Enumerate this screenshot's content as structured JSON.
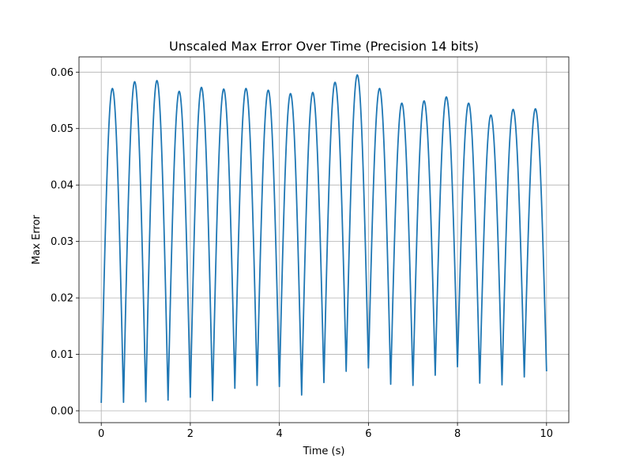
{
  "chart_data": {
    "type": "line",
    "title": "Unscaled Max Error Over Time (Precision 14 bits)",
    "xlabel": "Time (s)",
    "ylabel": "Max Error",
    "xlim": [
      -0.5,
      10.5
    ],
    "ylim": [
      -0.0021,
      0.0627
    ],
    "xticks": [
      0,
      2,
      4,
      6,
      8,
      10
    ],
    "xtick_labels": [
      "0",
      "2",
      "4",
      "6",
      "8",
      "10"
    ],
    "yticks": [
      0.0,
      0.01,
      0.02,
      0.03,
      0.04,
      0.05,
      0.06
    ],
    "ytick_labels": [
      "0.00",
      "0.01",
      "0.02",
      "0.03",
      "0.04",
      "0.05",
      "0.06"
    ],
    "grid": true,
    "legend": "none",
    "series": [
      {
        "color": "#1f77b4",
        "x": [
          0.0,
          0.25,
          0.5,
          0.75,
          1.0,
          1.25,
          1.5,
          1.75,
          2.0,
          2.25,
          2.5,
          2.75,
          3.0,
          3.25,
          3.5,
          3.75,
          4.0,
          4.25,
          4.5,
          4.75,
          5.0,
          5.25,
          5.5,
          5.75,
          6.0,
          6.25,
          6.5,
          6.75,
          7.0,
          7.25,
          7.5,
          7.75,
          8.0,
          8.25,
          8.5,
          8.75,
          9.0,
          9.25,
          9.5,
          9.75,
          10.0
        ],
        "y": [
          0.0014,
          0.0571,
          0.0015,
          0.0583,
          0.0016,
          0.0585,
          0.0019,
          0.0566,
          0.0024,
          0.0573,
          0.0018,
          0.057,
          0.004,
          0.0571,
          0.0045,
          0.0568,
          0.0043,
          0.0562,
          0.0028,
          0.0564,
          0.005,
          0.0582,
          0.007,
          0.0595,
          0.0076,
          0.0571,
          0.0047,
          0.0545,
          0.0045,
          0.0549,
          0.0063,
          0.0556,
          0.0078,
          0.0545,
          0.0049,
          0.0524,
          0.0046,
          0.0534,
          0.006,
          0.0535,
          0.007
        ]
      }
    ]
  }
}
